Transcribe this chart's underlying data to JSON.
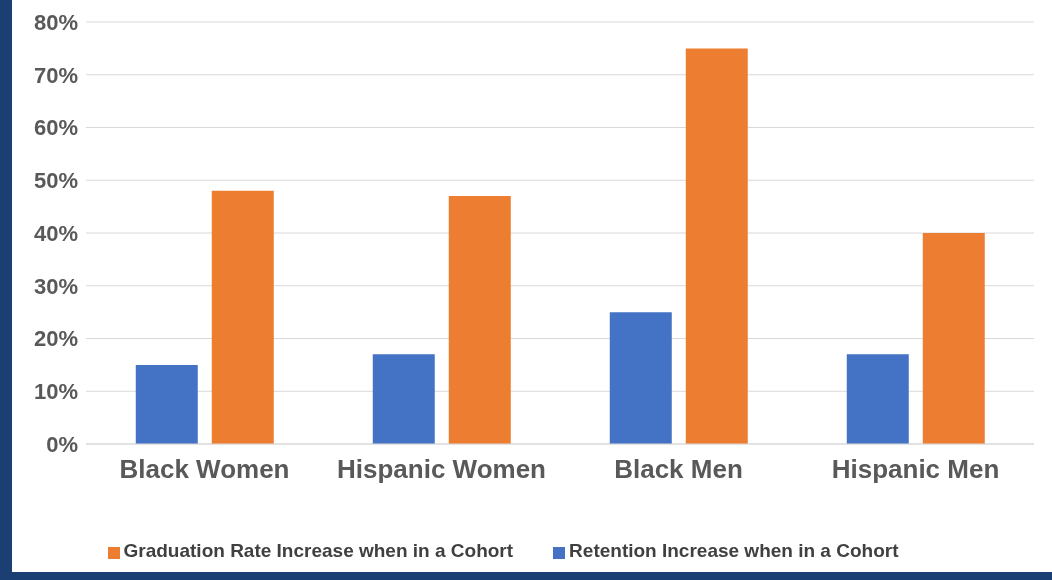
{
  "chart_data": {
    "type": "bar",
    "categories": [
      "Black Women",
      "Hispanic Women",
      "Black Men",
      "Hispanic Men"
    ],
    "series": [
      {
        "name": "Retention Increase when in a Cohort",
        "color": "#4472c4",
        "values": [
          15,
          17,
          25,
          17
        ]
      },
      {
        "name": "Graduation Rate Increase when in a Cohort",
        "color": "#ed7d31",
        "values": [
          48,
          47,
          75,
          40
        ]
      }
    ],
    "ylim": [
      0,
      80
    ],
    "yticks": [
      {
        "value": 0,
        "label": "0%"
      },
      {
        "value": 10,
        "label": "10%"
      },
      {
        "value": 20,
        "label": "20%"
      },
      {
        "value": 30,
        "label": "30%"
      },
      {
        "value": 40,
        "label": "40%"
      },
      {
        "value": 50,
        "label": "50%"
      },
      {
        "value": 60,
        "label": "60%"
      },
      {
        "value": 70,
        "label": "70%"
      },
      {
        "value": 80,
        "label": "80%"
      }
    ],
    "grid": "y",
    "legend": "bottom"
  }
}
